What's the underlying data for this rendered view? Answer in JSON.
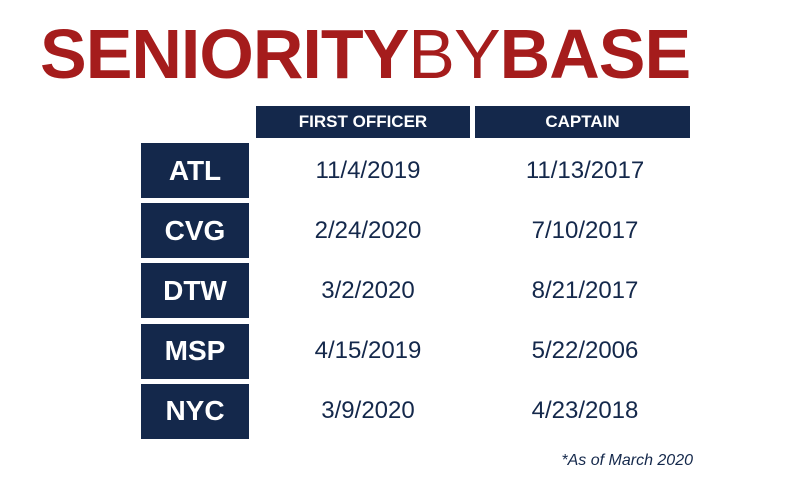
{
  "title": {
    "parts": [
      "SENIORITY",
      "BY",
      "BASE"
    ]
  },
  "table": {
    "columns": [
      "FIRST OFFICER",
      "CAPTAIN"
    ],
    "rows": [
      {
        "base": "ATL",
        "first_officer": "11/4/2019",
        "captain": "11/13/2017"
      },
      {
        "base": "CVG",
        "first_officer": "2/24/2020",
        "captain": "7/10/2017"
      },
      {
        "base": "DTW",
        "first_officer": "3/2/2020",
        "captain": "8/21/2017"
      },
      {
        "base": "MSP",
        "first_officer": "4/15/2019",
        "captain": "5/22/2006"
      },
      {
        "base": "NYC",
        "first_officer": "3/9/2020",
        "captain": "4/23/2018"
      }
    ]
  },
  "footnote": "*As of March 2020"
}
